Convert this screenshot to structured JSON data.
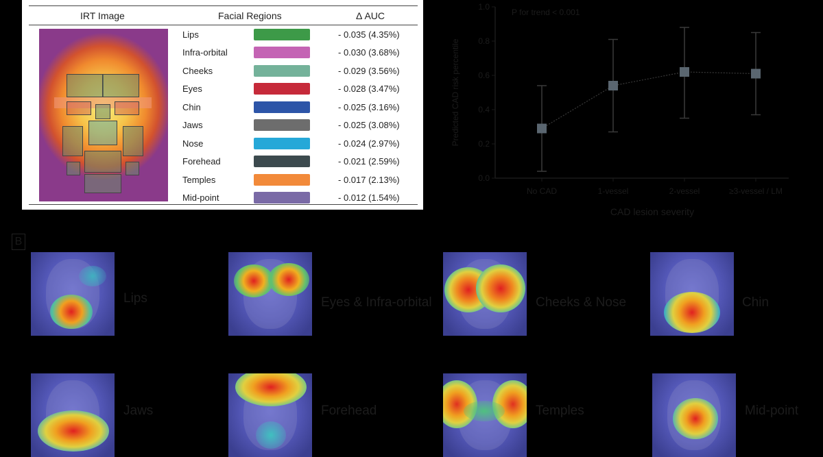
{
  "table": {
    "headers": {
      "image": "IRT Image",
      "regions": "Facial Regions",
      "auc": "Δ AUC"
    },
    "rows": [
      {
        "name": "Lips",
        "color": "#3d9a48",
        "value": "- 0.035 (4.35%)"
      },
      {
        "name": "Infra-orbital",
        "color": "#c464b4",
        "value": "- 0.030 (3.68%)"
      },
      {
        "name": "Cheeks",
        "color": "#74b29a",
        "value": "- 0.029 (3.56%)"
      },
      {
        "name": "Eyes",
        "color": "#c62a3a",
        "value": "- 0.028 (3.47%)"
      },
      {
        "name": "Chin",
        "color": "#2d55a8",
        "value": "- 0.025 (3.16%)"
      },
      {
        "name": "Jaws",
        "color": "#6d6d6d",
        "value": "- 0.025 (3.08%)"
      },
      {
        "name": "Nose",
        "color": "#26a8d8",
        "value": "- 0.024 (2.97%)"
      },
      {
        "name": "Forehead",
        "color": "#3c4a4e",
        "value": "- 0.021 (2.59%)"
      },
      {
        "name": "Temples",
        "color": "#f28a3a",
        "value": "- 0.017 (2.13%)"
      },
      {
        "name": "Mid-point",
        "color": "#7a6aa6",
        "value": "- 0.012 (1.54%)"
      }
    ]
  },
  "chart_data": {
    "type": "scatter",
    "annotation": "P for trend < 0.001",
    "ylabel": "Predicted CAD risk percentile",
    "xlabel": "CAD lesion severity",
    "categories": [
      "No CAD",
      "1-vessel",
      "2-vessel",
      "≥3-vessel / LM"
    ],
    "ylim": [
      0.0,
      1.0
    ],
    "yticks": [
      "0.0",
      "0.2",
      "0.4",
      "0.6",
      "0.8",
      "1.0"
    ],
    "series": [
      {
        "values": [
          0.29,
          0.54,
          0.62,
          0.61
        ],
        "lower": [
          0.04,
          0.27,
          0.35,
          0.37
        ],
        "upper": [
          0.54,
          0.81,
          0.88,
          0.85
        ]
      }
    ],
    "marker_color": "#5a6670"
  },
  "panel_b": {
    "label": "B",
    "items": [
      {
        "caption": "Lips"
      },
      {
        "caption": "Eyes & Infra-orbital"
      },
      {
        "caption": "Cheeks & Nose"
      },
      {
        "caption": "Chin"
      },
      {
        "caption": "Jaws"
      },
      {
        "caption": "Forehead"
      },
      {
        "caption": "Temples"
      },
      {
        "caption": "Mid-point"
      }
    ]
  }
}
